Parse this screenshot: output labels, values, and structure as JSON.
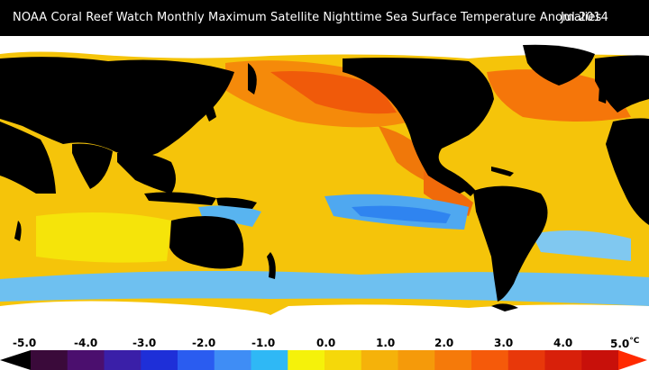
{
  "header": {
    "title": "NOAA Coral Reef Watch Monthly Maximum Satellite Nighttime Sea Surface Temperature Anomalies",
    "date": "Jul 2014"
  },
  "legend": {
    "ticks": [
      "-5.0",
      "-4.0",
      "-3.0",
      "-2.0",
      "-1.0",
      "0.0",
      "1.0",
      "2.0",
      "3.0",
      "4.0",
      "5.0"
    ],
    "unit": "°C",
    "colors": [
      "#3a0a3a",
      "#4b0f6e",
      "#3a1fa8",
      "#1e2fd8",
      "#2a5cf0",
      "#3f8df5",
      "#2fb8f5",
      "#f5f20a",
      "#f5d80a",
      "#f5b20a",
      "#f59a0a",
      "#f57a0a",
      "#f55a0a",
      "#e8380a",
      "#d8200a",
      "#c8100a"
    ],
    "min_color": "#000000",
    "max_color": "#ff2a00"
  },
  "map_colors": {
    "land": "#000000",
    "ice": "#ffffff",
    "ocean_base": "#f5c40a",
    "warm": "#f58a0a",
    "hot": "#f0500a",
    "cool": "#4fb0f0",
    "cold": "#2a80f0",
    "neutral": "#f5ee10"
  }
}
